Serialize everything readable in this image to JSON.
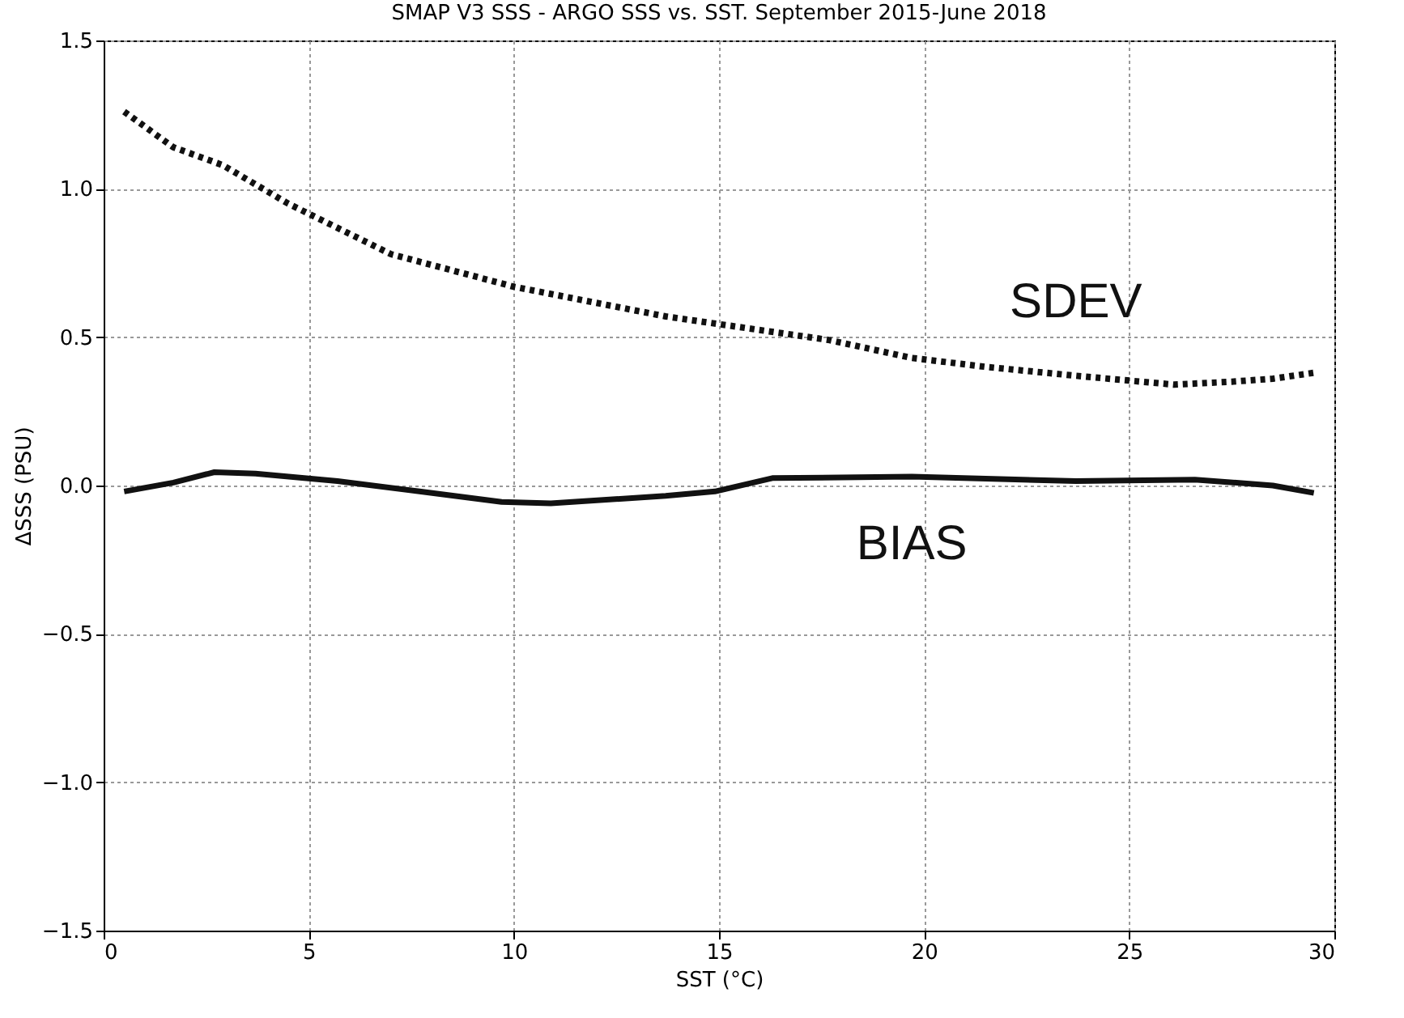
{
  "chart_data": {
    "type": "line",
    "title": "SMAP V3 SSS - ARGO SSS vs. SST.  September 2015-June 2018",
    "xlabel": "SST (°C)",
    "ylabel": "ΔSSS (PSU)",
    "xlim": [
      0,
      30
    ],
    "xticks": [
      0,
      5,
      10,
      15,
      20,
      25,
      30
    ],
    "ylim": [
      -1.5,
      1.5
    ],
    "yticks": [
      -1.5,
      {
        "value": -1,
        "label": "−1.0"
      },
      -0.5,
      {
        "value": 0,
        "label": "0.0"
      },
      0.5,
      {
        "value": 1,
        "label": "1.0"
      },
      1.5
    ],
    "grid": true,
    "series": [
      {
        "name": "SDEV",
        "color": "#111111",
        "line_style": "dotted",
        "x": [
          0.5,
          1.7,
          2.9,
          4.5,
          7.0,
          10.0,
          13.7,
          17.7,
          19.7,
          21.5,
          23.7,
          26.1,
          27.5,
          28.5,
          29.5
        ],
        "values": [
          1.26,
          1.14,
          1.08,
          0.95,
          0.78,
          0.67,
          0.57,
          0.49,
          0.43,
          0.4,
          0.37,
          0.34,
          0.35,
          0.36,
          0.38
        ]
      },
      {
        "name": "BIAS",
        "color": "#111111",
        "line_style": "solid",
        "x": [
          0.5,
          1.7,
          2.7,
          3.7,
          5.7,
          7.7,
          9.7,
          10.9,
          13.7,
          14.9,
          16.3,
          19.7,
          23.7,
          26.6,
          28.5,
          29.5
        ],
        "values": [
          -0.02,
          0.01,
          0.045,
          0.04,
          0.015,
          -0.02,
          -0.055,
          -0.06,
          -0.035,
          -0.02,
          0.025,
          0.03,
          0.015,
          0.02,
          0.0,
          -0.025
        ]
      }
    ]
  }
}
